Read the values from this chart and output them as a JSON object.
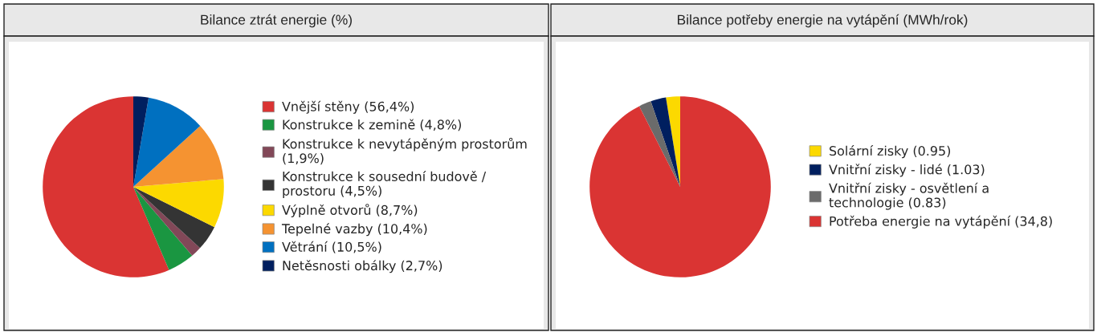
{
  "chart_data": [
    {
      "type": "pie",
      "title": "Bilance ztrát energie (%)",
      "legend": "right",
      "categories": [
        "Vnější stěny (56,4%)",
        "Konstrukce k zemině (4,8%)",
        "Konstrukce k nevytápěným prostorům\n(1,9%)",
        "Konstrukce k sousední budově /\nprostoru (4,5%)",
        "Výplně otvorů (8,7%)",
        "Tepelné vazby (10,4%)",
        "Větrání (10,5%)",
        "Netěsnosti obálky (2,7%)"
      ],
      "values": [
        56.4,
        4.8,
        1.9,
        4.5,
        8.7,
        10.4,
        10.5,
        2.7
      ],
      "colors": [
        "#da3433",
        "#1a9641",
        "#824858",
        "#343434",
        "#fcd900",
        "#f59331",
        "#0070c0",
        "#001f5f"
      ]
    },
    {
      "type": "pie",
      "title": "Bilance potřeby energie na vytápění (MWh/rok)",
      "legend": "right",
      "categories": [
        "Solární zisky (0.95)",
        "Vnitřní zisky - lidé (1.03)",
        "Vnitřní zisky - osvětlení a\ntechnologie (0.83)",
        "Potřeba energie na vytápění (34,8)"
      ],
      "values": [
        0.95,
        1.03,
        0.83,
        34.8
      ],
      "colors": [
        "#fcd900",
        "#001f5f",
        "#6b6b6b",
        "#da3433"
      ]
    }
  ]
}
